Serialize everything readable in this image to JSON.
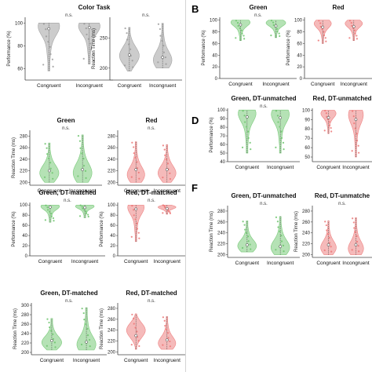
{
  "section_labels": [
    "B",
    "D",
    "F"
  ],
  "chart_data": [
    {
      "type": "violin",
      "title": "Color Task",
      "significance": "n.s.",
      "ylabel": "Performance (%)",
      "yticks": [
        60,
        80,
        100
      ],
      "ylim": [
        50,
        105
      ],
      "categories": [
        "Congruent",
        "Incongruent"
      ],
      "color": "#9a9a9a",
      "groups": [
        {
          "median": 95,
          "range": [
            58,
            100
          ],
          "mode": 98
        },
        {
          "median": 96,
          "range": [
            64,
            100
          ],
          "mode": 98
        }
      ]
    },
    {
      "type": "violin",
      "title": "",
      "significance": "n.s.",
      "ylabel": "Reaction Time (ms)",
      "yticks": [
        200,
        250
      ],
      "ylim": [
        180,
        285
      ],
      "categories": [
        "Congruent",
        "Incongruent"
      ],
      "color": "#9a9a9a",
      "groups": [
        {
          "median": 222,
          "range": [
            195,
            268
          ],
          "mode": 220
        },
        {
          "median": 218,
          "range": [
            200,
            275
          ],
          "mode": 212
        }
      ]
    },
    {
      "type": "violin",
      "title": "Green",
      "significance": "n.s.",
      "ylabel": "Performance (%)",
      "yticks": [
        0,
        20,
        40,
        60,
        80,
        100
      ],
      "ylim": [
        0,
        105
      ],
      "categories": [
        "Congruent",
        "Incongruent"
      ],
      "color": "#6cc46c",
      "groups": [
        {
          "median": 92,
          "range": [
            65,
            100
          ],
          "mode": 97
        },
        {
          "median": 90,
          "range": [
            70,
            100
          ],
          "mode": 96
        }
      ]
    },
    {
      "type": "violin",
      "title": "Red",
      "significance": "",
      "ylabel": "Performance (%)",
      "yticks": [
        0,
        20,
        40,
        60,
        80,
        100
      ],
      "ylim": [
        0,
        105
      ],
      "categories": [
        "Congruent",
        "Incongruent"
      ],
      "color": "#ec7474",
      "groups": [
        {
          "median": 88,
          "range": [
            60,
            100
          ],
          "mode": 95
        },
        {
          "median": 89,
          "range": [
            65,
            100
          ],
          "mode": 95
        }
      ]
    },
    {
      "type": "violin",
      "title": "Green",
      "significance": "n.s.",
      "ylabel": "Reaction Time (ms)",
      "yticks": [
        200,
        220,
        240,
        260,
        280
      ],
      "ylim": [
        195,
        290
      ],
      "categories": [
        "Congruent",
        "Incongruent"
      ],
      "color": "#6cc46c",
      "groups": [
        {
          "median": 220,
          "range": [
            200,
            268
          ],
          "mode": 215
        },
        {
          "median": 222,
          "range": [
            200,
            282
          ],
          "mode": 215
        }
      ]
    },
    {
      "type": "violin",
      "title": "Red",
      "significance": "n.s.",
      "ylabel": "",
      "yticks": [
        200,
        220,
        240,
        260,
        280
      ],
      "ylim": [
        195,
        290
      ],
      "categories": [
        "Congruent",
        "Incongruent"
      ],
      "color": "#ec7474",
      "groups": [
        {
          "median": 222,
          "range": [
            200,
            270
          ],
          "mode": 212
        },
        {
          "median": 222,
          "range": [
            200,
            265
          ],
          "mode": 215
        }
      ]
    },
    {
      "type": "violin",
      "title": "Green, DT-unmatched",
      "significance": "n.s.",
      "ylabel": "Performance (%)",
      "yticks": [
        40,
        50,
        60,
        70,
        80,
        90,
        100
      ],
      "ylim": [
        40,
        102
      ],
      "categories": [
        "Congruent",
        "Incongruent"
      ],
      "color": "#6cc46c",
      "groups": [
        {
          "median": 92,
          "range": [
            50,
            100
          ],
          "mode": 97
        },
        {
          "median": 91,
          "range": [
            50,
            100
          ],
          "mode": 96
        }
      ]
    },
    {
      "type": "violin",
      "title": "Red, DT-unmatched",
      "significance": "",
      "ylabel": "",
      "yticks": [
        50,
        60,
        70,
        80,
        90,
        100
      ],
      "ylim": [
        45,
        102
      ],
      "categories": [
        "Congruent",
        "Incongruent"
      ],
      "color": "#ec7474",
      "groups": [
        {
          "median": 92,
          "range": [
            75,
            100
          ],
          "mode": 97
        },
        {
          "median": 90,
          "range": [
            50,
            100
          ],
          "mode": 96
        }
      ]
    },
    {
      "type": "violin",
      "title": "Green, DT-matched",
      "significance": "n.s.",
      "ylabel": "Performance (%)",
      "yticks": [
        0,
        20,
        40,
        60,
        80,
        100
      ],
      "ylim": [
        0,
        105
      ],
      "categories": [
        "Congruent",
        "Incongruent"
      ],
      "color": "#6cc46c",
      "groups": [
        {
          "median": 96,
          "range": [
            66,
            100
          ],
          "mode": 98
        },
        {
          "median": 95,
          "range": [
            75,
            100
          ],
          "mode": 98
        }
      ]
    },
    {
      "type": "violin",
      "title": "Red, DT-matched",
      "significance": "n.s.",
      "ylabel": "Performance (%)",
      "yticks": [
        0,
        20,
        40,
        60,
        80,
        100
      ],
      "ylim": [
        0,
        105
      ],
      "categories": [
        "Congruent",
        "Incongruent"
      ],
      "color": "#ec7474",
      "groups": [
        {
          "median": 92,
          "range": [
            28,
            100
          ],
          "mode": 97
        },
        {
          "median": 93,
          "range": [
            82,
            100
          ],
          "mode": 96
        }
      ]
    },
    {
      "type": "violin",
      "title": "Green, DT-unmatched",
      "significance": "n.s.",
      "ylabel": "Reaction Time (ms)",
      "yticks": [
        200,
        220,
        240,
        260,
        280
      ],
      "ylim": [
        195,
        290
      ],
      "categories": [
        "Congruent",
        "Incongruent"
      ],
      "color": "#6cc46c",
      "groups": [
        {
          "median": 218,
          "range": [
            205,
            262
          ],
          "mode": 215
        },
        {
          "median": 215,
          "range": [
            200,
            270
          ],
          "mode": 212
        }
      ]
    },
    {
      "type": "violin",
      "title": "Red, DT-unmatche",
      "significance": "n.s.",
      "ylabel": "Reaction Time (ms)",
      "yticks": [
        200,
        220,
        240,
        260,
        280
      ],
      "ylim": [
        195,
        290
      ],
      "categories": [
        "Congruent",
        "Incongruent"
      ],
      "color": "#ec7474",
      "groups": [
        {
          "median": 218,
          "range": [
            200,
            262
          ],
          "mode": 212
        },
        {
          "median": 218,
          "range": [
            200,
            268
          ],
          "mode": 210
        }
      ]
    },
    {
      "type": "violin",
      "title": "Green, DT-matched",
      "significance": "n.s.",
      "ylabel": "Reaction Time (ms)",
      "yticks": [
        200,
        220,
        240,
        260,
        280,
        300
      ],
      "ylim": [
        195,
        305
      ],
      "categories": [
        "Congruent",
        "Incongruent"
      ],
      "color": "#6cc46c",
      "groups": [
        {
          "median": 225,
          "range": [
            205,
            272
          ],
          "mode": 220
        },
        {
          "median": 222,
          "range": [
            205,
            295
          ],
          "mode": 215
        }
      ]
    },
    {
      "type": "violin",
      "title": "Red, DT-matched",
      "significance": "n.s.",
      "ylabel": "Reaction Time (ms)",
      "yticks": [
        200,
        220,
        240,
        260,
        280
      ],
      "ylim": [
        195,
        290
      ],
      "categories": [
        "Congruent",
        "Incongruent"
      ],
      "color": "#ec7474",
      "groups": [
        {
          "median": 230,
          "range": [
            205,
            270
          ],
          "mode": 240
        },
        {
          "median": 222,
          "range": [
            205,
            265
          ],
          "mode": 215
        }
      ]
    }
  ]
}
